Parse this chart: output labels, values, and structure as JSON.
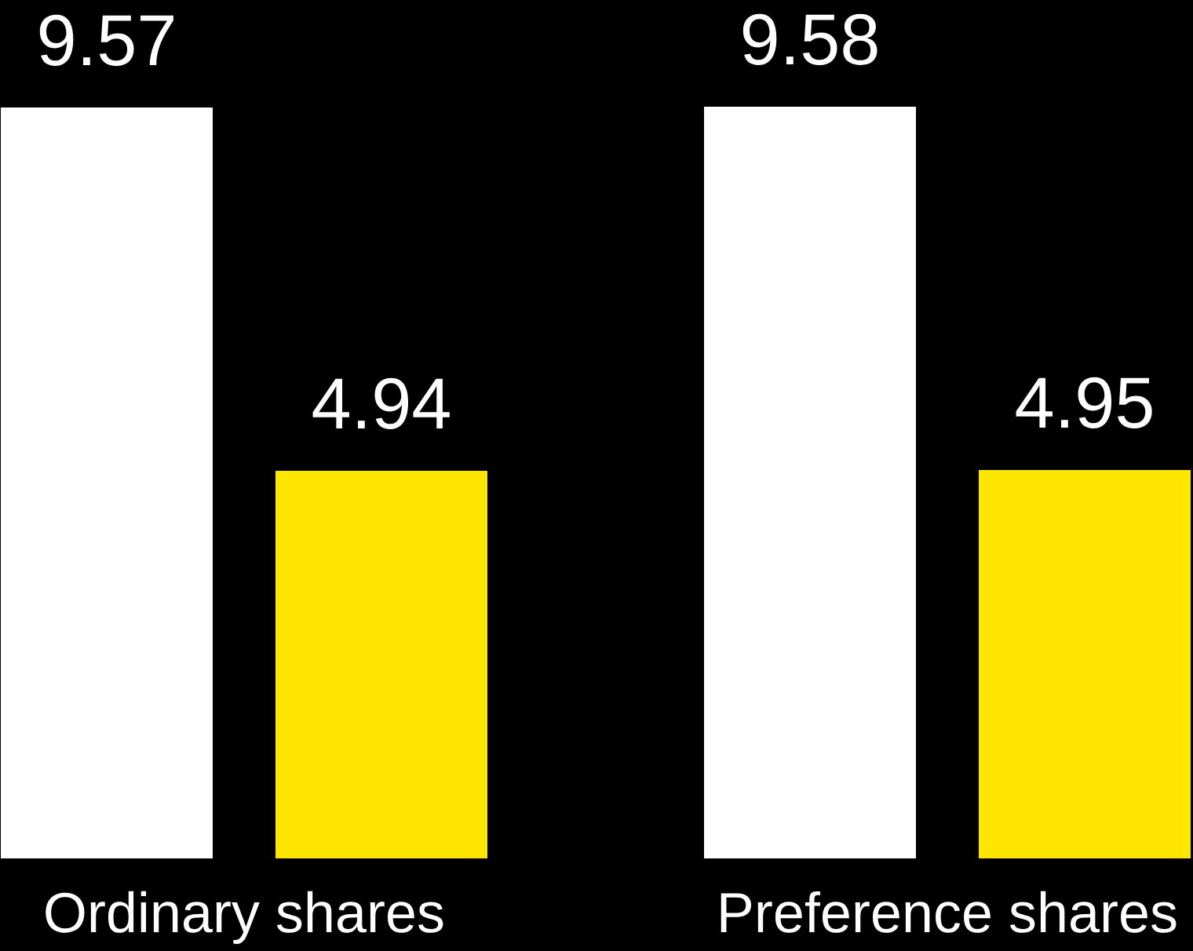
{
  "chart_data": {
    "type": "bar",
    "categories": [
      "Ordinary shares",
      "Preference shares"
    ],
    "series": [
      {
        "color": "#ffffff",
        "values": [
          9.57,
          9.58
        ]
      },
      {
        "color": "#ffe600",
        "values": [
          4.94,
          4.95
        ]
      }
    ],
    "data_labels": true,
    "tick_labels": "x"
  }
}
